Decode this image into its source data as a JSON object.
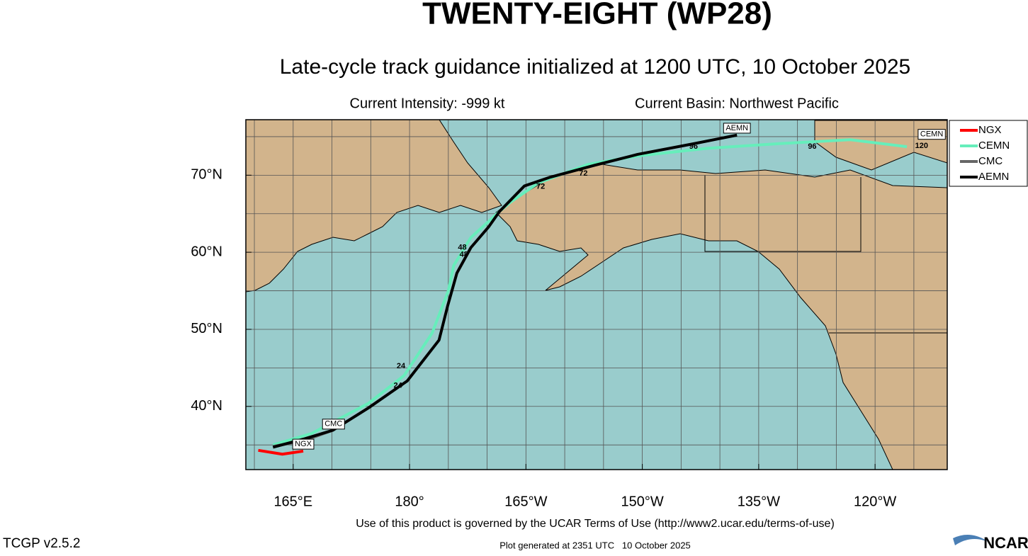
{
  "chart_data": {
    "type": "track-map",
    "title": "TWENTY-EIGHT (WP28)",
    "subtitle": "Late-cycle track guidance initialized at 1200 UTC, 10 October 2025",
    "intensity": "Current Intensity: -999 kt",
    "basin": "Current Basin: Northwest Pacific",
    "terms": "Use of this product is governed by the UCAR Terms of Use (http://www2.ucar.edu/terms-of-use)",
    "version": "TCGP v2.5.2",
    "generated": "Plot generated at 2351 UTC   10 October 2025",
    "logo": "NCAR",
    "xlim": [
      158.9,
      249.3
    ],
    "ylim": [
      31.8,
      77.2
    ],
    "xticks": [
      {
        "value": 165,
        "label": "165°E"
      },
      {
        "value": 180,
        "label": "180°"
      },
      {
        "value": 195,
        "label": "165°W"
      },
      {
        "value": 210,
        "label": "150°W"
      },
      {
        "value": 225,
        "label": "135°W"
      },
      {
        "value": 240,
        "label": "120°W"
      }
    ],
    "yticks": [
      {
        "value": 40,
        "label": "40°N"
      },
      {
        "value": 50,
        "label": "50°N"
      },
      {
        "value": 60,
        "label": "60°N"
      },
      {
        "value": 70,
        "label": "70°N"
      }
    ],
    "grid": true,
    "grid_step": 5,
    "legend": "right",
    "series": [
      {
        "name": "NGX",
        "color": "#ff0000",
        "lon": [
          160.5,
          163.6,
          166.3
        ],
        "lat": [
          34.3,
          33.8,
          34.2
        ]
      },
      {
        "name": "CEMN",
        "color": "#66eebb",
        "lon": [
          162.4,
          167.4,
          174.7,
          179.3,
          182.9,
          185.0,
          185.7,
          187.9,
          191.6,
          193.0,
          196.6,
          203.0,
          209.4,
          218.5,
          227.7,
          236.8,
          244.1
        ],
        "lat": [
          35.0,
          36.5,
          40.4,
          44.0,
          49.5,
          55.0,
          58.3,
          61.9,
          65.3,
          66.5,
          69.0,
          71.4,
          72.5,
          73.5,
          74.1,
          74.6,
          73.7
        ]
      },
      {
        "name": "CMC",
        "color": "#666666",
        "lon": [
          162.4,
          166.5,
          170.1
        ],
        "lat": [
          34.8,
          35.6,
          36.9
        ]
      },
      {
        "name": "AEMN",
        "color": "#000000",
        "lon": [
          162.4,
          166.5,
          170.1,
          174.7,
          179.7,
          183.8,
          184.9,
          186.1,
          187.9,
          190.2,
          191.6,
          194.8,
          198.0,
          203.9,
          209.4,
          216.7,
          222.2
        ],
        "lat": [
          34.7,
          35.8,
          36.9,
          39.8,
          43.3,
          48.6,
          53.0,
          57.3,
          60.6,
          63.3,
          65.3,
          68.6,
          69.7,
          71.3,
          72.7,
          74.1,
          75.2
        ]
      }
    ],
    "model_labels": [
      {
        "text": "AEMN",
        "lon": 222.2,
        "lat": 76.1
      },
      {
        "text": "CEMN",
        "lon": 247.3,
        "lat": 75.3
      },
      {
        "text": "CMC",
        "lon": 170.2,
        "lat": 37.7
      },
      {
        "text": "NGX",
        "lon": 166.3,
        "lat": 35.1
      }
    ],
    "hour_labels": [
      {
        "text": "24",
        "lon": 178.9,
        "lat": 45.2
      },
      {
        "text": "24",
        "lon": 178.5,
        "lat": 42.7
      },
      {
        "text": "48",
        "lon": 186.8,
        "lat": 60.6
      },
      {
        "text": "48",
        "lon": 187.0,
        "lat": 59.7
      },
      {
        "text": "72",
        "lon": 196.9,
        "lat": 68.5
      },
      {
        "text": "72",
        "lon": 202.4,
        "lat": 70.2
      },
      {
        "text": "96",
        "lon": 216.6,
        "lat": 73.7
      },
      {
        "text": "96",
        "lon": 231.9,
        "lat": 73.7
      },
      {
        "text": "120",
        "lon": 246.0,
        "lat": 73.8
      }
    ]
  }
}
